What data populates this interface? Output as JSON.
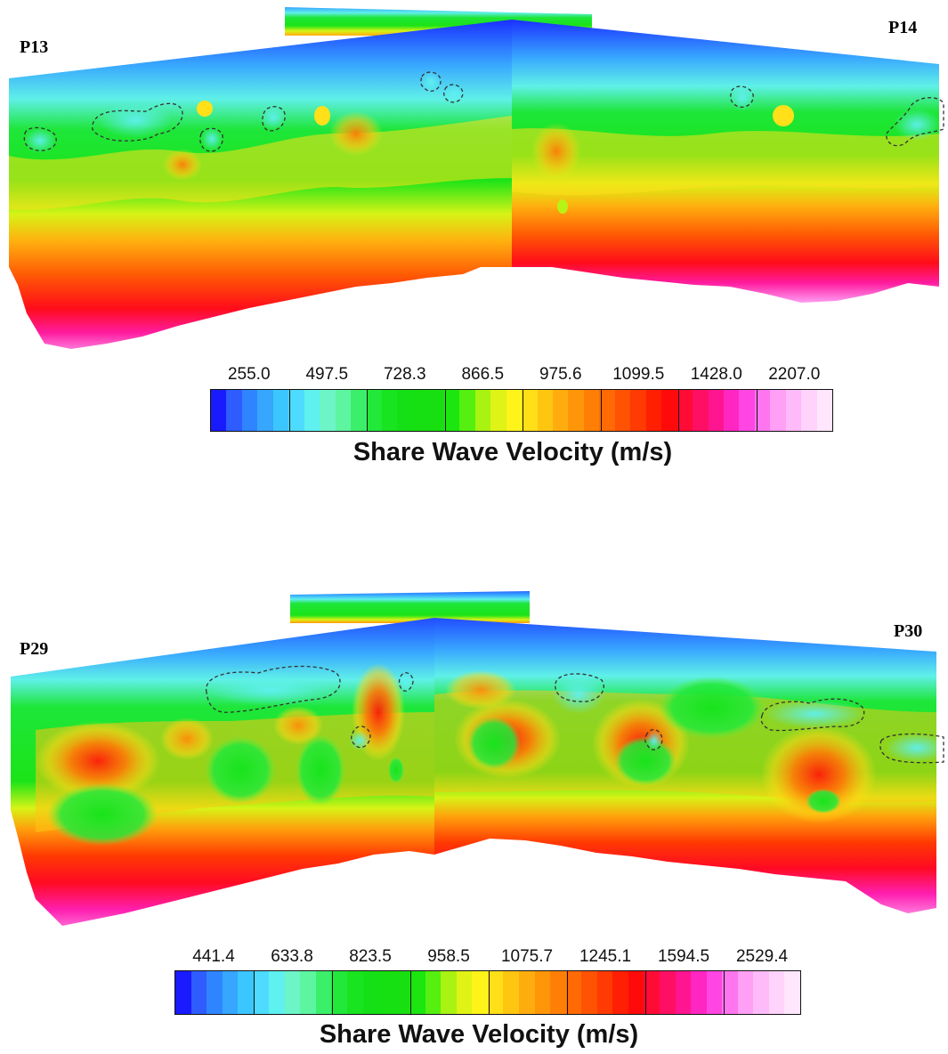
{
  "top_panel": {
    "left_label": "P13",
    "right_label": "P14",
    "colorbar_ticks": [
      "255.0",
      "497.5",
      "728.3",
      "866.5",
      "975.6",
      "1099.5",
      "1428.0",
      "2207.0"
    ],
    "colorbar_title": "Share Wave Velocity (m/s)"
  },
  "bottom_panel": {
    "left_label": "P29",
    "right_label": "P30",
    "colorbar_ticks": [
      "441.4",
      "633.8",
      "823.5",
      "958.5",
      "1075.7",
      "1245.1",
      "1594.5",
      "2529.4"
    ],
    "colorbar_title": "Share Wave Velocity (m/s)"
  },
  "colormap": [
    "#1a1aff",
    "#2e5cff",
    "#2f85ff",
    "#36a6ff",
    "#3cc6ff",
    "#4ddcff",
    "#5ff0f0",
    "#6df5c8",
    "#5ef5a0",
    "#3bef6a",
    "#22e83a",
    "#18e41f",
    "#14e015",
    "#16e012",
    "#18e010",
    "#1be60f",
    "#55ef10",
    "#a8f312",
    "#dff316",
    "#fff419",
    "#ffdf18",
    "#ffc611",
    "#ffad0e",
    "#ff9609",
    "#ff7f06",
    "#ff6a04",
    "#ff5203",
    "#ff3a02",
    "#ff1f02",
    "#ff0a0a",
    "#ff0b35",
    "#ff0f63",
    "#ff158f",
    "#ff26c2",
    "#ff46e2",
    "#ff75ef",
    "#ff9ff5",
    "#ffbaf9",
    "#ffd3fb",
    "#ffe6fd"
  ]
}
